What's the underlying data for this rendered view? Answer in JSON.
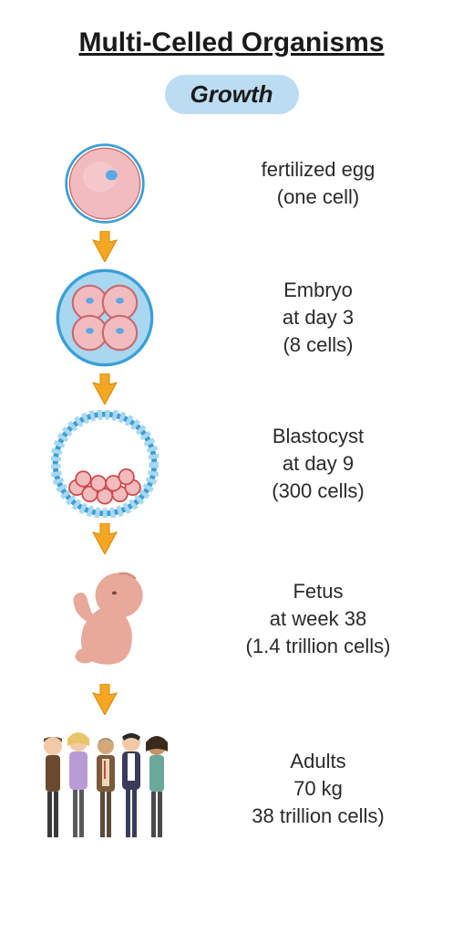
{
  "title": "Multi-Celled Organisms",
  "subtitle": "Growth",
  "colors": {
    "pill_bg": "#bcdcf2",
    "arrow_fill": "#f5a623",
    "arrow_stroke": "#d48806",
    "cell_pink": "#f2bcbf",
    "cell_pink_dark": "#e89aa0",
    "cell_outline": "#c96a70",
    "nucleus": "#5aa9e6",
    "membrane_blue": "#3a9fd8",
    "membrane_blue_light": "#a8d8f0",
    "skin": "#e8a99a",
    "skin_dark": "#d48e7f"
  },
  "stages": [
    {
      "label_lines": [
        "fertilized egg",
        "(one cell)"
      ],
      "icon": "fertilized-egg"
    },
    {
      "label_lines": [
        "Embryo",
        "at day 3",
        "(8 cells)"
      ],
      "icon": "embryo"
    },
    {
      "label_lines": [
        "Blastocyst",
        "at day 9",
        "(300 cells)"
      ],
      "icon": "blastocyst"
    },
    {
      "label_lines": [
        "Fetus",
        "at week 38",
        "(1.4 trillion cells)"
      ],
      "icon": "fetus"
    },
    {
      "label_lines": [
        "Adults",
        "70 kg",
        "38 trillion cells)"
      ],
      "icon": "adults"
    }
  ]
}
